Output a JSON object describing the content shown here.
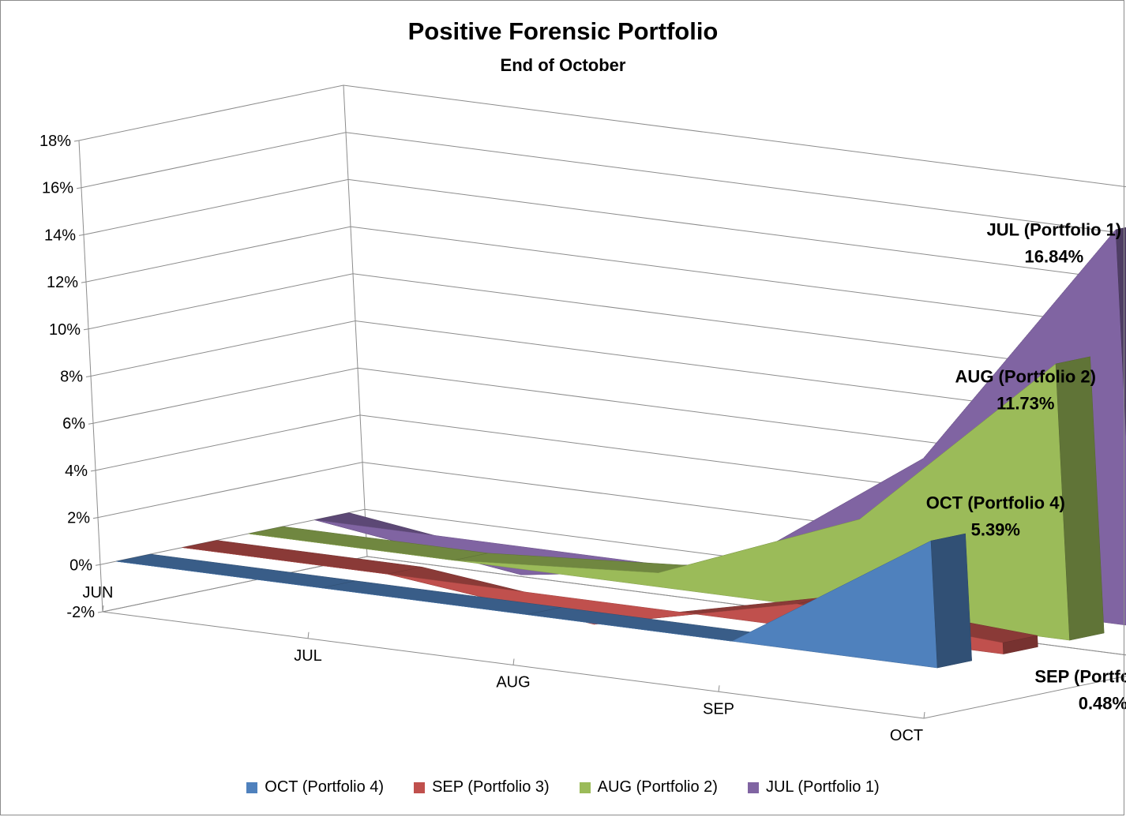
{
  "chart_data": {
    "type": "area",
    "title": "Positive Forensic Portfolio",
    "subtitle": "End of October",
    "categories": [
      "JUN",
      "JUL",
      "AUG",
      "SEP",
      "OCT"
    ],
    "ylim": [
      -0.02,
      0.18
    ],
    "yticks": [
      "-2%",
      "0%",
      "2%",
      "4%",
      "6%",
      "8%",
      "10%",
      "12%",
      "14%",
      "16%",
      "18%"
    ],
    "grid": true,
    "legend_position": "bottom",
    "series": [
      {
        "name": "OCT (Portfolio 4)",
        "color": "#4f81bd",
        "values": [
          0,
          0,
          0,
          0,
          0.0539
        ],
        "label": "OCT (Portfolio 4)",
        "value_label": "5.39%"
      },
      {
        "name": "SEP (Portfolio 3)",
        "color": "#c0504d",
        "values": [
          0,
          0,
          -0.01,
          0.01,
          0.0048
        ],
        "label": "SEP (Portfolio 3)",
        "value_label": "0.48%"
      },
      {
        "name": "AUG (Portfolio 2)",
        "color": "#9bbb59",
        "values": [
          0,
          0,
          0.006,
          0.04,
          0.1173
        ],
        "label": "AUG (Portfolio 2)",
        "value_label": "11.73%"
      },
      {
        "name": "JUL (Portfolio 1)",
        "color": "#8064a2",
        "values": [
          0,
          -0.012,
          0.001,
          0.06,
          0.1684
        ],
        "label": "JUL (Portfolio 1)",
        "value_label": "16.84%"
      }
    ]
  }
}
